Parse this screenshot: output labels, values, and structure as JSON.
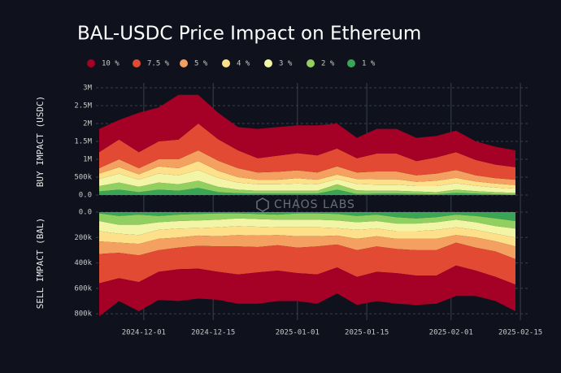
{
  "chart_data": [
    {
      "type": "area",
      "stacked": true,
      "title": "BAL-USDC Price Impact on Ethereum",
      "ylabel": "BUY IMPACT (USDC)",
      "watermark": "CHAOS LABS",
      "x": [
        "2024-11-22",
        "2024-11-26",
        "2024-11-30",
        "2024-12-04",
        "2024-12-08",
        "2024-12-12",
        "2024-12-16",
        "2024-12-20",
        "2024-12-24",
        "2024-12-28",
        "2025-01-01",
        "2025-01-05",
        "2025-01-09",
        "2025-01-13",
        "2025-01-17",
        "2025-01-21",
        "2025-01-25",
        "2025-01-29",
        "2025-02-02",
        "2025-02-06",
        "2025-02-10",
        "2025-02-14"
      ],
      "xlim": [
        "2024-11-22",
        "2025-02-14"
      ],
      "ylim": [
        0,
        3000000
      ],
      "yticks": [
        {
          "value": 0,
          "label": "0.0"
        },
        {
          "value": 500000,
          "label": "500k"
        },
        {
          "value": 1000000,
          "label": "1M"
        },
        {
          "value": 1500000,
          "label": "1.5M"
        },
        {
          "value": 2000000,
          "label": "2M"
        },
        {
          "value": 2500000,
          "label": "2.5M"
        },
        {
          "value": 3000000,
          "label": "3M"
        }
      ],
      "grid": true,
      "series": [
        {
          "name": "10 %",
          "color": "#a50026",
          "values": [
            650000,
            550000,
            1100000,
            950000,
            1250000,
            800000,
            740000,
            650000,
            820000,
            800000,
            780000,
            840000,
            700000,
            570000,
            690000,
            690000,
            650000,
            600000,
            600000,
            520000,
            500000,
            470000
          ]
        },
        {
          "name": "7.5 %",
          "color": "#e34a33",
          "values": [
            450000,
            550000,
            450000,
            500000,
            550000,
            750000,
            600000,
            500000,
            400000,
            450000,
            480000,
            480000,
            500000,
            400000,
            500000,
            500000,
            400000,
            450000,
            500000,
            430000,
            380000,
            350000
          ]
        },
        {
          "name": "5 %",
          "color": "#f4a060",
          "values": [
            150000,
            220000,
            170000,
            200000,
            250000,
            300000,
            280000,
            250000,
            200000,
            220000,
            220000,
            200000,
            230000,
            180000,
            220000,
            220000,
            180000,
            200000,
            220000,
            170000,
            150000,
            150000
          ]
        },
        {
          "name": "4 %",
          "color": "#fee08b",
          "values": [
            150000,
            180000,
            150000,
            200000,
            200000,
            250000,
            200000,
            150000,
            130000,
            130000,
            150000,
            130000,
            120000,
            140000,
            150000,
            150000,
            120000,
            150000,
            150000,
            120000,
            110000,
            100000
          ]
        },
        {
          "name": "3 %",
          "color": "#f2f5a6",
          "values": [
            200000,
            250000,
            200000,
            250000,
            250000,
            300000,
            250000,
            200000,
            180000,
            180000,
            200000,
            180000,
            150000,
            180000,
            170000,
            170000,
            150000,
            170000,
            180000,
            150000,
            130000,
            120000
          ]
        },
        {
          "name": "2 %",
          "color": "#91cf60",
          "values": [
            150000,
            200000,
            150000,
            200000,
            180000,
            200000,
            150000,
            100000,
            80000,
            80000,
            80000,
            80000,
            150000,
            100000,
            80000,
            80000,
            70000,
            60000,
            90000,
            70000,
            60000,
            50000
          ]
        },
        {
          "name": "1 %",
          "color": "#3aa655",
          "values": [
            100000,
            150000,
            80000,
            150000,
            120000,
            200000,
            80000,
            50000,
            40000,
            40000,
            40000,
            40000,
            150000,
            30000,
            40000,
            40000,
            30000,
            20000,
            60000,
            40000,
            20000,
            10000
          ]
        }
      ]
    },
    {
      "type": "area",
      "stacked": true,
      "inverted": true,
      "ylabel": "SELL IMPACT (BAL)",
      "x": [
        "2024-11-22",
        "2024-11-26",
        "2024-11-30",
        "2024-12-04",
        "2024-12-08",
        "2024-12-12",
        "2024-12-16",
        "2024-12-20",
        "2024-12-24",
        "2024-12-28",
        "2025-01-01",
        "2025-01-05",
        "2025-01-09",
        "2025-01-13",
        "2025-01-17",
        "2025-01-21",
        "2025-01-25",
        "2025-01-29",
        "2025-02-02",
        "2025-02-06",
        "2025-02-10",
        "2025-02-14"
      ],
      "xlim": [
        "2024-11-22",
        "2025-02-14"
      ],
      "xticks": [
        "2024-12-01",
        "2024-12-15",
        "2025-01-01",
        "2025-01-15",
        "2025-02-01",
        "2025-02-15"
      ],
      "ylim": [
        0,
        850000
      ],
      "yticks": [
        {
          "value": 0,
          "label": "0.0"
        },
        {
          "value": 200000,
          "label": "200k"
        },
        {
          "value": 400000,
          "label": "400k"
        },
        {
          "value": 600000,
          "label": "600k"
        },
        {
          "value": 800000,
          "label": "800k"
        }
      ],
      "grid": true,
      "series": [
        {
          "name": "10 %",
          "color": "#a50026",
          "values": [
            260000,
            180000,
            230000,
            220000,
            250000,
            235000,
            220000,
            230000,
            245000,
            240000,
            220000,
            230000,
            205000,
            220000,
            230000,
            240000,
            230000,
            220000,
            240000,
            200000,
            190000,
            210000
          ]
        },
        {
          "name": "7.5 %",
          "color": "#e34a33",
          "values": [
            230000,
            200000,
            210000,
            170000,
            170000,
            180000,
            200000,
            220000,
            200000,
            200000,
            200000,
            220000,
            180000,
            210000,
            200000,
            190000,
            200000,
            200000,
            180000,
            180000,
            200000,
            200000
          ]
        },
        {
          "name": "5 %",
          "color": "#f4a060",
          "values": [
            100000,
            80000,
            90000,
            90000,
            80000,
            80000,
            80000,
            90000,
            90000,
            80000,
            90000,
            80000,
            70000,
            90000,
            80000,
            80000,
            90000,
            90000,
            60000,
            80000,
            80000,
            100000
          ]
        },
        {
          "name": "4 %",
          "color": "#fee08b",
          "values": [
            80000,
            70000,
            70000,
            70000,
            70000,
            60000,
            70000,
            70000,
            70000,
            60000,
            70000,
            70000,
            60000,
            70000,
            60000,
            60000,
            60000,
            70000,
            60000,
            60000,
            60000,
            70000
          ]
        },
        {
          "name": "3 %",
          "color": "#f2f5a6",
          "values": [
            80000,
            70000,
            80000,
            60000,
            60000,
            60000,
            60000,
            60000,
            60000,
            60000,
            60000,
            60000,
            60000,
            60000,
            60000,
            60000,
            60000,
            60000,
            60000,
            60000,
            60000,
            70000
          ]
        },
        {
          "name": "2 %",
          "color": "#91cf60",
          "values": [
            60000,
            70000,
            80000,
            50000,
            50000,
            50000,
            50000,
            40000,
            40000,
            40000,
            50000,
            50000,
            50000,
            50000,
            50000,
            50000,
            40000,
            40000,
            40000,
            50000,
            60000,
            60000
          ]
        },
        {
          "name": "1 %",
          "color": "#3aa655",
          "values": [
            10000,
            30000,
            20000,
            30000,
            20000,
            15000,
            10000,
            10000,
            15000,
            20000,
            10000,
            10000,
            15000,
            30000,
            20000,
            40000,
            50000,
            40000,
            20000,
            30000,
            50000,
            70000
          ]
        }
      ]
    }
  ]
}
